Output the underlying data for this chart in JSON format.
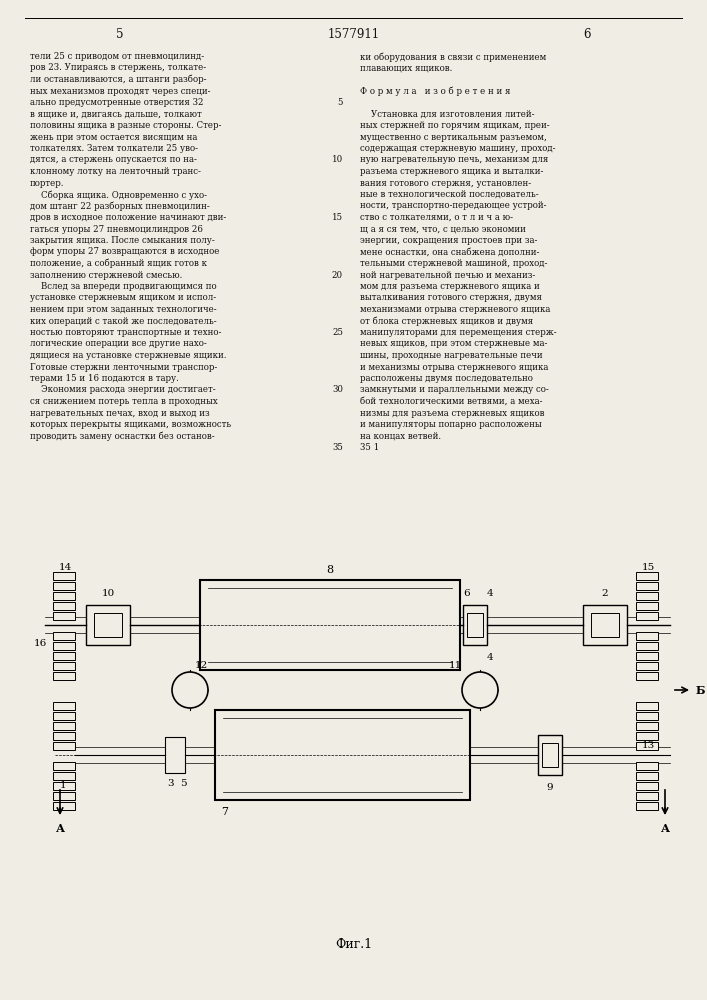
{
  "page_bg": "#f0ede4",
  "text_color": "#111111",
  "line_color": "#111111",
  "page_num_left": "5",
  "page_num_center": "1577911",
  "page_num_right": "6",
  "fig_label": "Фиг.1"
}
